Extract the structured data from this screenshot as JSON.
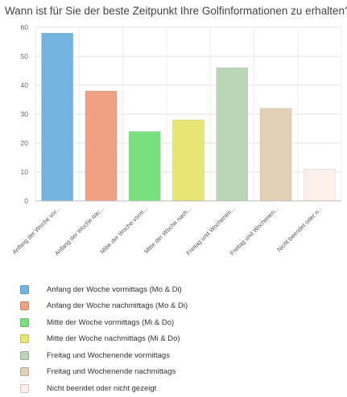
{
  "chart_data": {
    "type": "bar",
    "title": "Wann ist für Sie der beste Zeitpunkt Ihre Golfinformationen zu erhalten?",
    "categories": [
      "Anfang der Woche vor...",
      "Anfang der Woche nac...",
      "Mitte der Woche vorm...",
      "Mitte der Woche nach...",
      "Freitag und Wochenen...",
      "Freitag und Wochenen...",
      "Nicht beendet oder n..."
    ],
    "values": [
      58,
      38,
      24,
      28,
      46,
      32,
      11
    ],
    "colors": [
      "#72b3e0",
      "#f2a083",
      "#78e07f",
      "#e5e673",
      "#b9d6b6",
      "#e2cfb6",
      "#fdf0ea"
    ],
    "ylim": [
      0,
      60
    ],
    "yticks": [
      0,
      10,
      20,
      30,
      40,
      50,
      60
    ],
    "grid": true,
    "legend_position": "bottom",
    "legend": [
      "Anfang der Woche vormittags (Mo & Di)",
      "Anfang der Woche nachmittags (Mo & Di)",
      "Mitte der Woche vormittags (Mi & Do)",
      "Mitte der Woche nachmittags (Mi & Do)",
      "Freitag und Wochenende vormittags",
      "Freitag und Wochenende nachmittags",
      "Nicht beendet oder nicht gezeigt"
    ]
  }
}
